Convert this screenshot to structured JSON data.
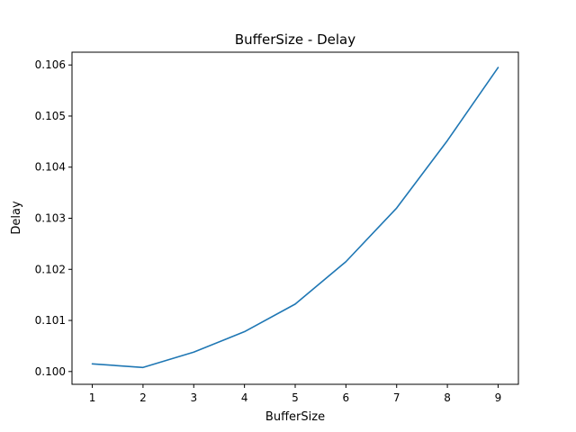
{
  "chart_data": {
    "type": "line",
    "title": "BufferSize - Delay",
    "xlabel": "BufferSize",
    "ylabel": "Delay",
    "xlim": [
      0.6,
      9.4
    ],
    "ylim": [
      0.09975,
      0.10625
    ],
    "xticks": [
      1,
      2,
      3,
      4,
      5,
      6,
      7,
      8,
      9
    ],
    "yticks": [
      0.1,
      0.101,
      0.102,
      0.103,
      0.104,
      0.105,
      0.106
    ],
    "ytick_labels": [
      "0.100",
      "0.101",
      "0.102",
      "0.103",
      "0.104",
      "0.105",
      "0.106"
    ],
    "grid": false,
    "legend": "none",
    "series": [
      {
        "color": "#1f77b4",
        "x": [
          1,
          2,
          3,
          4,
          5,
          6,
          7,
          8,
          9
        ],
        "y": [
          0.10015,
          0.10008,
          0.10038,
          0.10078,
          0.10132,
          0.10215,
          0.1032,
          0.10452,
          0.10595
        ]
      }
    ]
  }
}
